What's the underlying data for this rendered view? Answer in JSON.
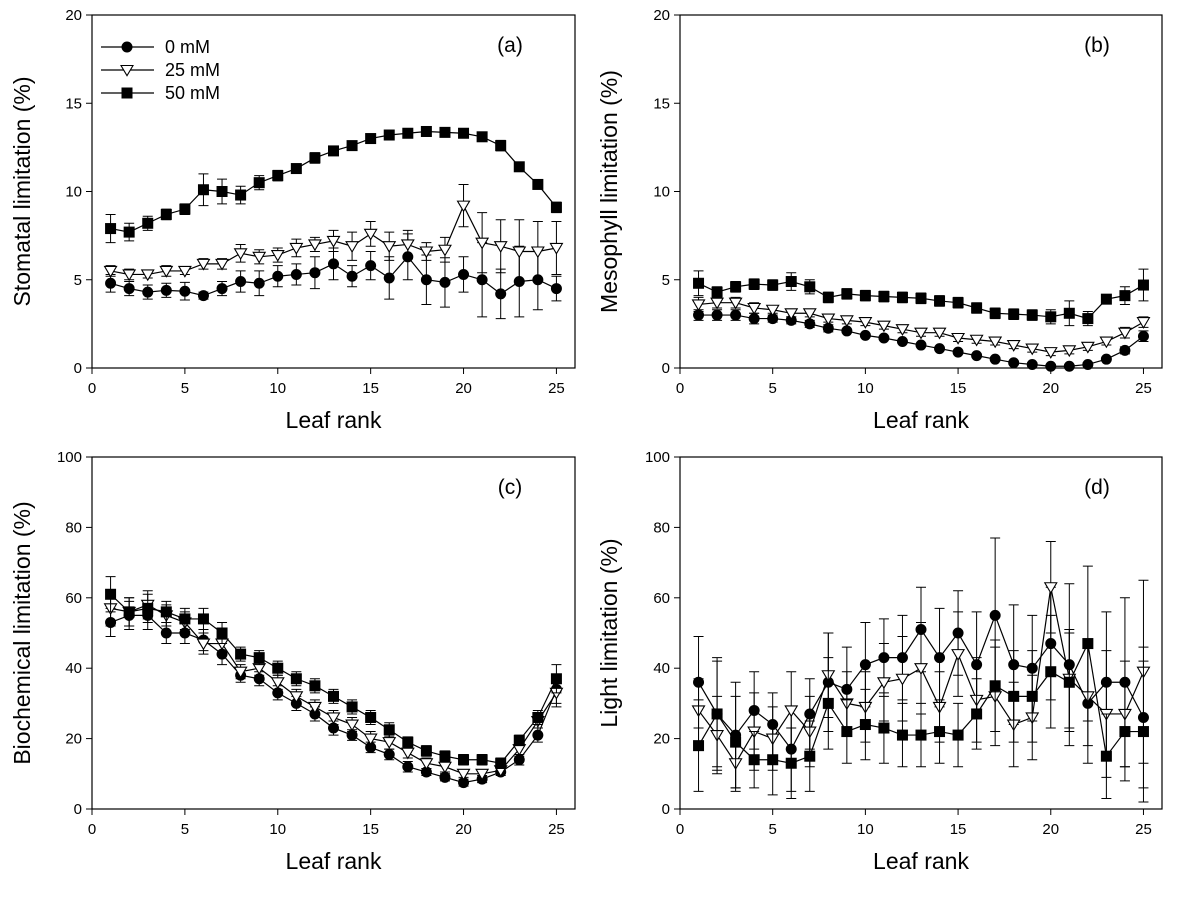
{
  "legend": [
    "0 mM",
    "25 mM",
    "50 mM"
  ],
  "marker_shapes": [
    "filled-circle",
    "open-triangle-down",
    "filled-square"
  ],
  "colors": {
    "line": "#000000",
    "open_fill": "#ffffff",
    "filled": "#000000"
  },
  "chart_data": [
    {
      "type": "line",
      "panel_label": "(a)",
      "xlabel": "Leaf rank",
      "ylabel": "Stomatal limitation (%)",
      "xlim": [
        0,
        26
      ],
      "ylim": [
        0,
        20
      ],
      "xticks": [
        0,
        5,
        10,
        15,
        20,
        25
      ],
      "yticks": [
        0,
        5,
        10,
        15,
        20
      ],
      "legend_position": "top-left",
      "x": [
        1,
        2,
        3,
        4,
        5,
        6,
        7,
        8,
        9,
        10,
        11,
        12,
        13,
        14,
        15,
        16,
        17,
        18,
        19,
        20,
        21,
        22,
        23,
        24,
        25
      ],
      "series": [
        {
          "name": "0 mM",
          "values": [
            4.8,
            4.5,
            4.3,
            4.4,
            4.35,
            4.1,
            4.5,
            4.9,
            4.8,
            5.2,
            5.3,
            5.4,
            5.9,
            5.2,
            5.8,
            5.1,
            6.3,
            5.0,
            4.85,
            5.3,
            5.0,
            4.2,
            4.9,
            5.0,
            4.5
          ],
          "err": [
            0.5,
            0.4,
            0.4,
            0.4,
            0.5,
            0.2,
            0.4,
            0.6,
            0.7,
            0.6,
            0.6,
            0.9,
            0.9,
            0.6,
            0.8,
            1.2,
            1.3,
            1.4,
            1.4,
            1.0,
            2.1,
            1.4,
            2.0,
            1.7,
            0.7
          ]
        },
        {
          "name": "25 mM",
          "values": [
            5.5,
            5.3,
            5.3,
            5.5,
            5.5,
            5.9,
            5.9,
            6.5,
            6.3,
            6.4,
            6.8,
            7.0,
            7.2,
            6.9,
            7.6,
            6.9,
            7.0,
            6.6,
            6.7,
            9.2,
            7.1,
            6.9,
            6.6,
            6.6,
            6.8
          ],
          "err": [
            0.3,
            0.3,
            0.2,
            0.3,
            0.2,
            0.3,
            0.3,
            0.5,
            0.4,
            0.4,
            0.5,
            0.4,
            0.6,
            0.8,
            0.7,
            0.8,
            0.8,
            0.5,
            0.7,
            1.2,
            1.7,
            1.5,
            1.8,
            1.7,
            1.5
          ]
        },
        {
          "name": "50 mM",
          "values": [
            7.9,
            7.7,
            8.2,
            8.7,
            9.0,
            10.1,
            10.0,
            9.8,
            10.5,
            10.9,
            11.3,
            11.9,
            12.3,
            12.6,
            13.0,
            13.2,
            13.3,
            13.4,
            13.35,
            13.3,
            13.1,
            12.6,
            11.4,
            10.4,
            9.1
          ],
          "err": [
            0.8,
            0.5,
            0.4,
            0.3,
            0.3,
            0.9,
            0.7,
            0.5,
            0.4,
            0.3,
            0.2,
            0.3,
            0.2,
            0.2,
            0.2,
            0.2,
            0.1,
            0.1,
            0.1,
            0.1,
            0.1,
            0.3,
            0.2,
            0.2,
            0.3
          ]
        }
      ]
    },
    {
      "type": "line",
      "panel_label": "(b)",
      "xlabel": "Leaf rank",
      "ylabel": "Mesophyll limitation (%)",
      "xlim": [
        0,
        26
      ],
      "ylim": [
        0,
        20
      ],
      "xticks": [
        0,
        5,
        10,
        15,
        20,
        25
      ],
      "yticks": [
        0,
        5,
        10,
        15,
        20
      ],
      "x": [
        1,
        2,
        3,
        4,
        5,
        6,
        7,
        8,
        9,
        10,
        11,
        12,
        13,
        14,
        15,
        16,
        17,
        18,
        19,
        20,
        21,
        22,
        23,
        24,
        25
      ],
      "series": [
        {
          "name": "0 mM",
          "values": [
            3.0,
            3.0,
            3.0,
            2.8,
            2.8,
            2.7,
            2.5,
            2.25,
            2.1,
            1.85,
            1.7,
            1.5,
            1.3,
            1.1,
            0.9,
            0.7,
            0.5,
            0.3,
            0.2,
            0.1,
            0.1,
            0.2,
            0.5,
            1.0,
            1.8
          ],
          "err": [
            0.3,
            0.3,
            0.3,
            0.3,
            0.2,
            0.2,
            0.2,
            0.2,
            0.1,
            0.1,
            0.1,
            0.1,
            0.1,
            0.1,
            0.1,
            0.1,
            0.1,
            0.1,
            0.1,
            0.1,
            0.1,
            0.1,
            0.1,
            0.2,
            0.3
          ]
        },
        {
          "name": "25 mM",
          "values": [
            3.6,
            3.7,
            3.7,
            3.4,
            3.3,
            3.1,
            3.1,
            2.8,
            2.7,
            2.6,
            2.4,
            2.2,
            2.0,
            2.0,
            1.7,
            1.6,
            1.5,
            1.3,
            1.1,
            0.9,
            1.0,
            1.2,
            1.5,
            2.0,
            2.6
          ],
          "err": [
            0.4,
            0.3,
            0.3,
            0.3,
            0.2,
            0.2,
            0.2,
            0.2,
            0.2,
            0.2,
            0.2,
            0.2,
            0.2,
            0.2,
            0.2,
            0.2,
            0.2,
            0.2,
            0.2,
            0.2,
            0.2,
            0.2,
            0.2,
            0.3,
            0.3
          ]
        },
        {
          "name": "50 mM",
          "values": [
            4.8,
            4.3,
            4.6,
            4.75,
            4.7,
            4.9,
            4.6,
            4.0,
            4.2,
            4.1,
            4.05,
            4.0,
            3.95,
            3.8,
            3.7,
            3.4,
            3.1,
            3.05,
            3.0,
            2.9,
            3.1,
            2.8,
            3.9,
            4.1,
            4.7
          ],
          "err": [
            0.7,
            0.3,
            0.3,
            0.3,
            0.3,
            0.5,
            0.4,
            0.3,
            0.3,
            0.3,
            0.3,
            0.3,
            0.3,
            0.3,
            0.3,
            0.3,
            0.3,
            0.3,
            0.3,
            0.4,
            0.7,
            0.4,
            0.2,
            0.5,
            0.9
          ]
        }
      ]
    },
    {
      "type": "line",
      "panel_label": "(c)",
      "xlabel": "Leaf rank",
      "ylabel": "Biochemical limitation (%)",
      "xlim": [
        0,
        26
      ],
      "ylim": [
        0,
        100
      ],
      "xticks": [
        0,
        5,
        10,
        15,
        20,
        25
      ],
      "yticks": [
        0,
        20,
        40,
        60,
        80,
        100
      ],
      "x": [
        1,
        2,
        3,
        4,
        5,
        6,
        7,
        8,
        9,
        10,
        11,
        12,
        13,
        14,
        15,
        16,
        17,
        18,
        19,
        20,
        21,
        22,
        23,
        24,
        25
      ],
      "series": [
        {
          "name": "0 mM",
          "values": [
            53,
            55,
            55,
            50,
            50,
            48,
            44,
            38,
            37,
            33,
            30,
            27,
            23,
            21,
            17.5,
            15.5,
            12,
            10.5,
            9,
            7.5,
            8.5,
            10.5,
            14,
            21,
            34
          ],
          "err": [
            4,
            4,
            4,
            3,
            3,
            3,
            3,
            2,
            2,
            2,
            2,
            2,
            2,
            1.5,
            1.5,
            1.5,
            1.5,
            1,
            1,
            1,
            1,
            1,
            1.5,
            2,
            4
          ]
        },
        {
          "name": "25 mM",
          "values": [
            57,
            56,
            58,
            55,
            53,
            47,
            47,
            39,
            40,
            36,
            32,
            29,
            26,
            24,
            20,
            19,
            16,
            13,
            12,
            10,
            10,
            11,
            17,
            25,
            33
          ],
          "err": [
            5,
            4,
            4,
            3,
            3,
            3,
            3,
            2,
            2,
            2,
            2,
            2,
            2,
            2,
            2,
            2,
            1.5,
            1.5,
            1.5,
            1,
            1,
            1,
            2,
            2,
            4
          ]
        },
        {
          "name": "50 mM",
          "values": [
            61,
            56,
            57,
            56,
            54,
            54,
            50,
            44,
            43,
            40,
            37,
            35,
            32,
            29,
            26,
            22.5,
            19,
            16.5,
            15,
            14,
            14,
            13,
            19.5,
            26,
            37
          ],
          "err": [
            5,
            4,
            4,
            3,
            3,
            3,
            3,
            2,
            2,
            2,
            2,
            2,
            2,
            2,
            2,
            2,
            1.5,
            1.5,
            1.5,
            1.5,
            1.5,
            1.5,
            1.5,
            2,
            4
          ]
        }
      ]
    },
    {
      "type": "line",
      "panel_label": "(d)",
      "xlabel": "Leaf rank",
      "ylabel": "Light limitation (%)",
      "xlim": [
        0,
        26
      ],
      "ylim": [
        0,
        100
      ],
      "xticks": [
        0,
        5,
        10,
        15,
        20,
        25
      ],
      "yticks": [
        0,
        20,
        40,
        60,
        80,
        100
      ],
      "x": [
        1,
        2,
        3,
        4,
        5,
        6,
        7,
        8,
        9,
        10,
        11,
        12,
        13,
        14,
        15,
        16,
        17,
        18,
        19,
        20,
        21,
        22,
        23,
        24,
        25
      ],
      "series": [
        {
          "name": "0 mM",
          "values": [
            36,
            27,
            21,
            28,
            24,
            17,
            27,
            36,
            34,
            41,
            43,
            43,
            51,
            43,
            50,
            41,
            55,
            41,
            40,
            47,
            41,
            30,
            36,
            36,
            26
          ],
          "err": [
            13,
            15,
            15,
            11,
            9,
            12,
            10,
            14,
            12,
            12,
            11,
            12,
            12,
            14,
            12,
            15,
            22,
            17,
            15,
            16,
            23,
            17,
            20,
            24,
            20
          ]
        },
        {
          "name": "25 mM",
          "values": [
            28,
            21,
            13,
            22,
            20,
            28,
            22,
            38,
            30,
            29,
            36,
            37,
            40,
            29,
            44,
            31,
            32,
            24,
            26,
            63,
            37,
            32,
            27,
            27,
            39
          ],
          "err": [
            9,
            11,
            8,
            11,
            9,
            11,
            10,
            12,
            9,
            10,
            11,
            12,
            13,
            10,
            12,
            12,
            14,
            12,
            12,
            13,
            14,
            14,
            18,
            15,
            26
          ]
        },
        {
          "name": "50 mM",
          "values": [
            18,
            27,
            19,
            14,
            14,
            13,
            15,
            30,
            22,
            24,
            23,
            21,
            21,
            22,
            21,
            27,
            35,
            32,
            32,
            39,
            36,
            47,
            15,
            22,
            22
          ],
          "err": [
            13,
            16,
            13,
            8,
            10,
            10,
            10,
            13,
            9,
            10,
            10,
            9,
            9,
            9,
            9,
            10,
            13,
            13,
            13,
            16,
            14,
            22,
            12,
            14,
            20
          ]
        }
      ]
    }
  ]
}
